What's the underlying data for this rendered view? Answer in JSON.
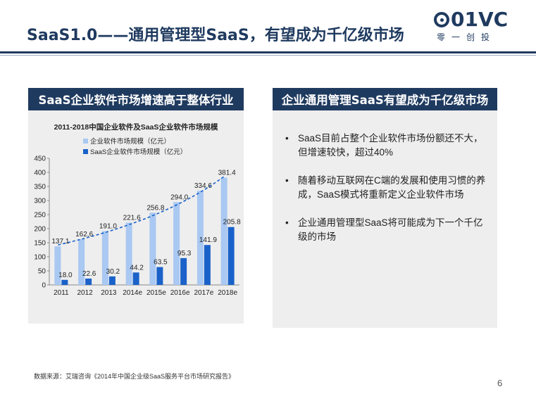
{
  "slide": {
    "title": "SaaS1.0——通用管理型SaaS，有望成为千亿级市场",
    "logo_text": "01VC",
    "logo_sub": "零一创投",
    "source": "数据来源：艾瑞咨询《2014年中国企业级SaaS服务平台市场研究报告》",
    "page_number": "6"
  },
  "left_panel": {
    "header": "SaaS企业软件市场增速高于整体行业"
  },
  "right_panel": {
    "header": "企业通用管理SaaS有望成为千亿级市场",
    "bullets": [
      "SaaS目前占整个企业软件市场份额还不大，但增速较快，超过40%",
      "随着移动互联网在C端的发展和使用习惯的养成，SaaS模式将重新定义企业软件市场",
      "企业通用管理型SaaS将可能成为下一个千亿级的市场"
    ]
  },
  "colors": {
    "navy": "#1f3a5f",
    "series_light": "#a9c8f2",
    "series_dark": "#1a62c9",
    "trend": "#1a62c9"
  },
  "chart_data": {
    "type": "bar",
    "title": "2011-2018中国企业软件及SaaS企业软件市场规模",
    "categories": [
      "2011",
      "2012",
      "2013",
      "2014e",
      "2015e",
      "2016e",
      "2017e",
      "2018e"
    ],
    "series": [
      {
        "name": "企业软件市场规模（亿元）",
        "values": [
          137.1,
          162.6,
          191.0,
          221.6,
          256.8,
          294.0,
          334.6,
          381.4
        ]
      },
      {
        "name": "SaaS企业软件市场规模（亿元）",
        "values": [
          18.0,
          22.6,
          30.2,
          44.2,
          63.5,
          95.3,
          141.9,
          205.8
        ]
      }
    ],
    "ylim": [
      0,
      450
    ],
    "yticks": [
      "0",
      "50",
      "100",
      "150",
      "200",
      "250",
      "300",
      "350",
      "400",
      "450"
    ],
    "value_labels": [
      [
        "137.1",
        "162.6",
        "191.0",
        "221.6",
        "256.8",
        "294.0",
        "334.6",
        "381.4"
      ],
      [
        "18.0",
        "22.6",
        "30.2",
        "44.2",
        "63.5",
        "95.3",
        "141.9",
        "205.8"
      ]
    ],
    "grid": false,
    "legend": "top-left",
    "trendline": true
  }
}
